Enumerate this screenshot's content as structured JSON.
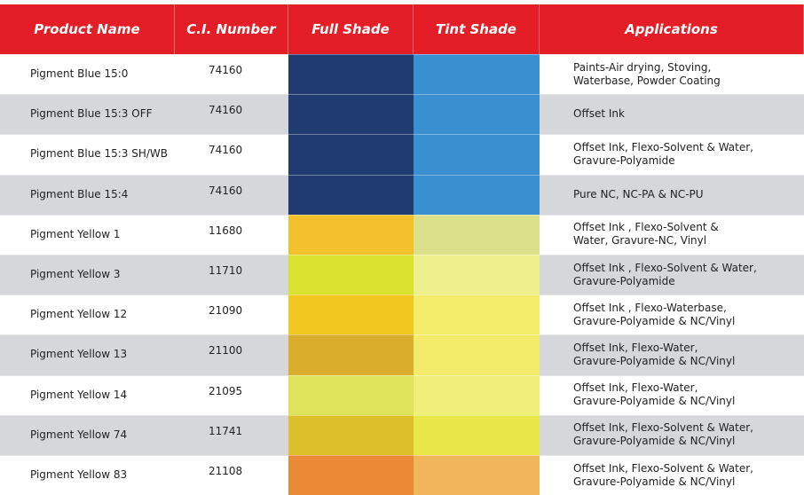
{
  "table": {
    "header": [
      "Product Name",
      "C.I. Number",
      "Full Shade",
      "Tint Shade",
      "Applications"
    ],
    "rows": [
      {
        "name": "Pigment Blue 15:0",
        "ci": "74160",
        "full": "#1f3b6f",
        "tint": "#3a8fd0",
        "applications": "Paints-Air drying, Stoving,\nWaterbase, Powder Coating"
      },
      {
        "name": "Pigment Blue 15:3 OFF",
        "ci": "74160",
        "full": "#1f3b6f",
        "tint": "#3a8fd0",
        "applications": "Offset Ink"
      },
      {
        "name": "Pigment Blue 15:3 SH/WB",
        "ci": "74160",
        "full": "#1f3b6f",
        "tint": "#3a8fd0",
        "applications": "Offset Ink, Flexo-Solvent & Water,\nGravure-Polyamide"
      },
      {
        "name": "Pigment Blue 15:4",
        "ci": "74160",
        "full": "#1f3b6f",
        "tint": "#3a8fd0",
        "applications": "Pure NC, NC-PA & NC-PU"
      },
      {
        "name": "Pigment Yellow 1",
        "ci": "11680",
        "full": "#f2c12b",
        "tint": "#dde08a",
        "applications": "Offset Ink , Flexo-Solvent &\nWater, Gravure-NC, Vinyl"
      },
      {
        "name": "Pigment Yellow 3",
        "ci": "11710",
        "full": "#d9e22e",
        "tint": "#eef08e",
        "applications": "Offset Ink , Flexo-Solvent & Water,\nGravure-Polyamide"
      },
      {
        "name": "Pigment Yellow 12",
        "ci": "21090",
        "full": "#f2c820",
        "tint": "#f4ec6b",
        "applications": "Offset Ink , Flexo-Waterbase,\nGravure-Polyamide & NC/Vinyl"
      },
      {
        "name": "Pigment Yellow 13",
        "ci": "21100",
        "full": "#dbad2c",
        "tint": "#f2ec6a",
        "applications": "Offset Ink, Flexo-Water,\nGravure-Polyamide & NC/Vinyl"
      },
      {
        "name": "Pigment Yellow 14",
        "ci": "21095",
        "full": "#dfe35c",
        "tint": "#f1ee7a",
        "applications": "Offset Ink, Flexo-Water,\nGravure-Polyamide & NC/Vinyl"
      },
      {
        "name": "Pigment Yellow 74",
        "ci": "11741",
        "full": "#dcbf2a",
        "tint": "#e9e84a",
        "applications": "Offset Ink, Flexo-Solvent & Water,\nGravure-Polyamide & NC/Vinyl"
      },
      {
        "name": "Pigment Yellow 83",
        "ci": "21108",
        "full": "#ea8a34",
        "tint": "#f0b659",
        "applications": "Offset Ink, Flexo-Solvent & Water,\nGravure-Polyamide & NC/Vinyl"
      }
    ]
  }
}
